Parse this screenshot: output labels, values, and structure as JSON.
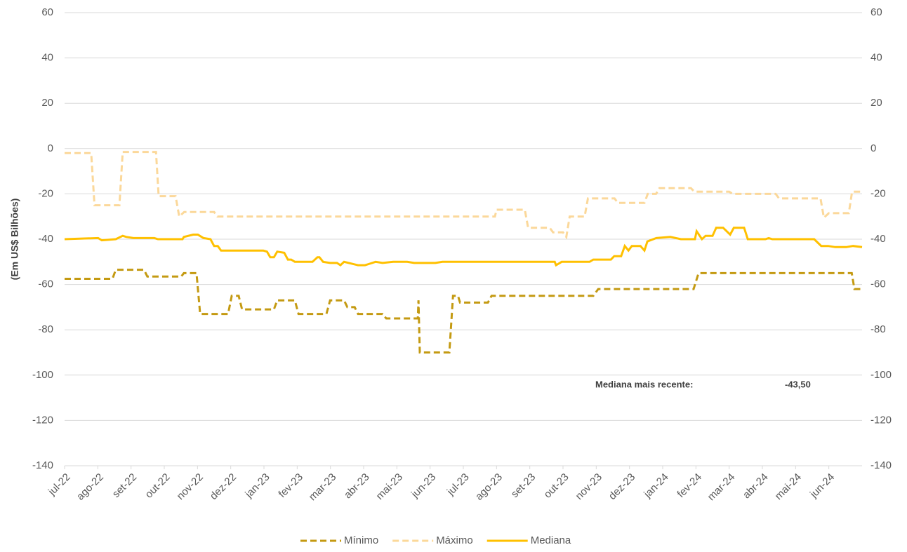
{
  "chart_data": {
    "type": "line",
    "y_label": "(Em US$ Bilhões)",
    "annotation": {
      "label": "Mediana mais recente:",
      "value": -43.5,
      "value_label": "-43,50"
    },
    "xlim": [
      0,
      24
    ],
    "xticks": [
      {
        "value": 0,
        "label": "jul-22"
      },
      {
        "value": 1,
        "label": "ago-22"
      },
      {
        "value": 2,
        "label": "set-22"
      },
      {
        "value": 3,
        "label": "out-22"
      },
      {
        "value": 4,
        "label": "nov-22"
      },
      {
        "value": 5,
        "label": "dez-22"
      },
      {
        "value": 6,
        "label": "jan-23"
      },
      {
        "value": 7,
        "label": "fev-23"
      },
      {
        "value": 8,
        "label": "mar-23"
      },
      {
        "value": 9,
        "label": "abr-23"
      },
      {
        "value": 10,
        "label": "mai-23"
      },
      {
        "value": 11,
        "label": "jun-23"
      },
      {
        "value": 12,
        "label": "jul-23"
      },
      {
        "value": 13,
        "label": "ago-23"
      },
      {
        "value": 14,
        "label": "set-23"
      },
      {
        "value": 15,
        "label": "out-23"
      },
      {
        "value": 16,
        "label": "nov-23"
      },
      {
        "value": 17,
        "label": "dez-23"
      },
      {
        "value": 18,
        "label": "jan-24"
      },
      {
        "value": 19,
        "label": "fev-24"
      },
      {
        "value": 20,
        "label": "mar-24"
      },
      {
        "value": 21,
        "label": "abr-24"
      },
      {
        "value": 22,
        "label": "mai-24"
      },
      {
        "value": 23,
        "label": "jun-24"
      }
    ],
    "ylim": [
      -140,
      60
    ],
    "yticks": [
      -140,
      -120,
      -100,
      -80,
      -60,
      -40,
      -20,
      0,
      20,
      40,
      60
    ],
    "y2lim": [
      -140,
      60
    ],
    "y2ticks": [
      -140,
      -120,
      -100,
      -80,
      -60,
      -40,
      -20,
      0,
      20,
      40,
      60
    ],
    "grid": true,
    "legend": "bottom",
    "series": [
      {
        "name": "Mínimo",
        "color": "#c49a12",
        "dashed": true,
        "x": [
          0,
          1.44,
          1.54,
          2.39,
          2.49,
          3.51,
          3.59,
          3.97,
          4.08,
          4.92,
          5.03,
          5.24,
          5.34,
          6.3,
          6.4,
          6.93,
          7.04,
          7.88,
          7.99,
          8.41,
          8.51,
          8.73,
          8.83,
          9.57,
          9.68,
          10.63,
          10.65,
          10.69,
          11.58,
          11.69,
          11.84,
          11.9,
          12.74,
          12.85,
          15.91,
          16.06,
          18.93,
          19.08,
          23.69,
          23.77,
          24
        ],
        "values": [
          -57.5,
          -57.5,
          -53.5,
          -53.5,
          -56.5,
          -56.5,
          -55,
          -55,
          -73,
          -73,
          -65,
          -65,
          -71,
          -71,
          -67,
          -67,
          -73,
          -73,
          -67,
          -67,
          -70,
          -70,
          -73,
          -73,
          -75,
          -75,
          -67,
          -90,
          -90,
          -65,
          -65,
          -68,
          -68,
          -65,
          -65,
          -62,
          -62,
          -55,
          -55,
          -62,
          -62
        ]
      },
      {
        "name": "Máximo",
        "color": "#fbd89a",
        "dashed": true,
        "x": [
          0,
          0.8,
          0.9,
          1.65,
          1.75,
          2.75,
          2.83,
          3.34,
          3.45,
          3.6,
          4.5,
          4.6,
          12.95,
          13.0,
          13.85,
          13.95,
          14.6,
          14.7,
          15.0,
          15.1,
          15.2,
          15.65,
          15.75,
          16.55,
          16.65,
          17.45,
          17.55,
          17.8,
          17.9,
          18.85,
          18.95,
          20.0,
          20.1,
          21.4,
          21.5,
          22.75,
          22.85,
          23.0,
          23.6,
          23.7,
          24
        ],
        "values": [
          -2,
          -2,
          -25,
          -25,
          -1.5,
          -1.5,
          -21,
          -21,
          -30,
          -28,
          -28,
          -30,
          -30,
          -27,
          -27,
          -35,
          -35,
          -37,
          -37,
          -39,
          -30,
          -30,
          -22,
          -22,
          -24,
          -24,
          -20,
          -20,
          -17.5,
          -17.5,
          -19,
          -19,
          -20,
          -20,
          -22,
          -22,
          -30.5,
          -28.5,
          -28.5,
          -19,
          -19
        ]
      },
      {
        "name": "Mediana",
        "color": "#ffc000",
        "dashed": false,
        "x": [
          0,
          1.01,
          1.12,
          1.54,
          1.75,
          1.86,
          2.07,
          2.7,
          2.81,
          3.55,
          3.59,
          3.87,
          4.01,
          4.18,
          4.39,
          4.5,
          4.61,
          4.71,
          5.98,
          6.09,
          6.19,
          6.3,
          6.4,
          6.61,
          6.72,
          6.82,
          6.93,
          7.46,
          7.61,
          7.67,
          7.78,
          7.99,
          8.2,
          8.3,
          8.41,
          8.83,
          9.04,
          9.15,
          9.36,
          9.57,
          9.89,
          10.31,
          10.52,
          11.16,
          11.37,
          12.86,
          14.75,
          14.79,
          14.96,
          15.8,
          15.91,
          16.44,
          16.54,
          16.75,
          16.86,
          16.97,
          17.07,
          17.33,
          17.45,
          17.54,
          17.81,
          18.23,
          18.55,
          18.97,
          19.02,
          19.18,
          19.29,
          19.5,
          19.61,
          19.82,
          20.03,
          20.14,
          20.45,
          20.56,
          21.09,
          21.19,
          21.3,
          22.56,
          22.77,
          22.98,
          23.19,
          23.52,
          23.73,
          24
        ],
        "values": [
          -40,
          -39.5,
          -40.5,
          -40,
          -38.5,
          -39,
          -39.5,
          -39.5,
          -40,
          -40,
          -39,
          -38,
          -38,
          -39.5,
          -40,
          -43,
          -43,
          -45,
          -45,
          -45.5,
          -48,
          -48,
          -45.5,
          -46,
          -49,
          -49,
          -50,
          -50,
          -48,
          -48,
          -50,
          -50.5,
          -50.5,
          -51.5,
          -50,
          -51.5,
          -51.5,
          -51,
          -50,
          -50.5,
          -50,
          -50,
          -50.5,
          -50.5,
          -50,
          -50,
          -50,
          -51.5,
          -50,
          -50,
          -49,
          -49,
          -47.5,
          -47.5,
          -43,
          -45,
          -43,
          -43,
          -45,
          -41,
          -39.5,
          -39,
          -40,
          -40,
          -36.5,
          -40,
          -38.5,
          -38.5,
          -35,
          -35,
          -38,
          -35,
          -35,
          -40,
          -40,
          -39.5,
          -40,
          -40,
          -43,
          -43,
          -43.5,
          -43.5,
          -43,
          -43.5
        ]
      }
    ]
  }
}
